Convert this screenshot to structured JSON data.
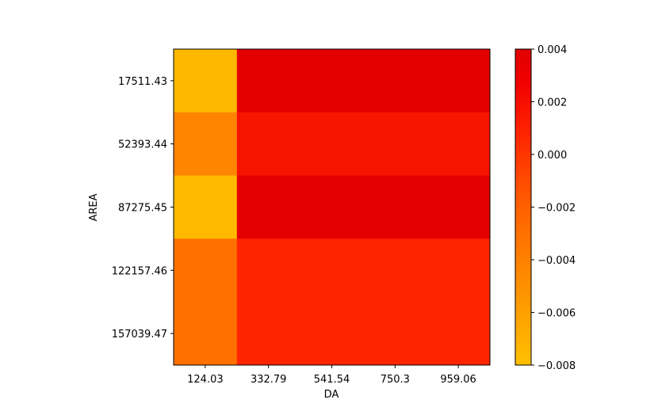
{
  "chart_data": {
    "type": "heatmap",
    "title": "",
    "xlabel": "DA",
    "ylabel": "AREA",
    "x_categories": [
      "124.03",
      "332.79",
      "541.54",
      "750.3",
      "959.06"
    ],
    "y_categories": [
      "17511.43",
      "52393.44",
      "87275.45",
      "122157.46",
      "157039.47"
    ],
    "values": [
      [
        -0.0075,
        0.0036,
        0.0036,
        0.0036,
        0.0036
      ],
      [
        -0.0043,
        0.0017,
        0.0017,
        0.0017,
        0.0017
      ],
      [
        -0.0076,
        0.0037,
        0.0037,
        0.0037,
        0.0037
      ],
      [
        -0.003,
        0.0008,
        0.0008,
        0.0008,
        0.0008
      ],
      [
        -0.003,
        0.0008,
        0.0008,
        0.0008,
        0.0008
      ]
    ],
    "colormap": "autumn_r",
    "colorbar": {
      "vmin": -0.008,
      "vmax": 0.004,
      "tick_values": [
        0.004,
        0.002,
        0.0,
        -0.002,
        -0.004,
        -0.006,
        -0.008
      ],
      "tick_labels": [
        "0.004",
        "0.002",
        "0.000",
        "−0.002",
        "−0.004",
        "−0.006",
        "−0.008"
      ],
      "low_color": "#ffc000",
      "high_color": "#e00000"
    },
    "grid": false,
    "legend": "none"
  }
}
